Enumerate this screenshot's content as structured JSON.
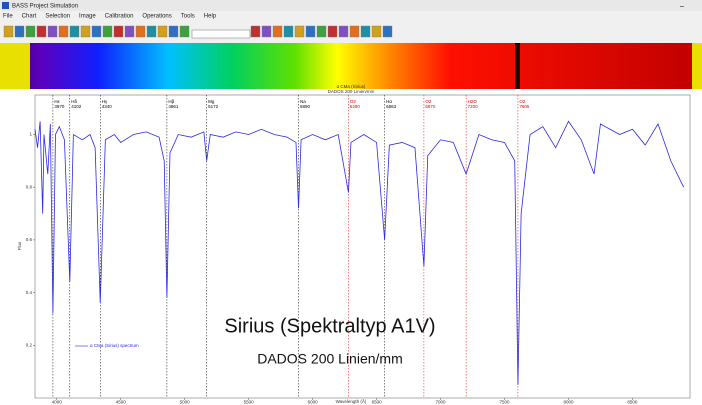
{
  "window": {
    "title": "BASS Project Simulation",
    "menu": [
      "File",
      "Chart",
      "Selection",
      "Image",
      "Calibration",
      "Operations",
      "Tools",
      "Help"
    ]
  },
  "chart": {
    "title": "α CMa (Sirius)",
    "subtitle": "DADOS 200 Linien/mm",
    "x_label": "Wavelength (Å)",
    "y_label": "Flux",
    "legend": "α CMa (Sirius) spectrum",
    "xlim": [
      3830,
      8950
    ],
    "ylim": [
      0,
      1.15
    ],
    "xticks": [
      4000,
      4500,
      5000,
      5500,
      6000,
      6500,
      7000,
      7500,
      8000,
      8500
    ],
    "yticks": [
      0.2,
      0.4,
      0.6,
      0.8,
      1.0
    ],
    "lines": [
      {
        "name": "Hε",
        "wavelength": 3970,
        "color": "#000000"
      },
      {
        "name": "Hδ",
        "wavelength": 4102,
        "color": "#000000"
      },
      {
        "name": "Hγ",
        "wavelength": 4340,
        "color": "#000000"
      },
      {
        "name": "Hβ",
        "wavelength": 4861,
        "color": "#000000"
      },
      {
        "name": "Mg",
        "wavelength": 5172,
        "color": "#000000"
      },
      {
        "name": "Na",
        "wavelength": 5890,
        "color": "#000000"
      },
      {
        "name": "O2",
        "wavelength": 6280,
        "color": "#e00000"
      },
      {
        "name": "Hα",
        "wavelength": 6563,
        "color": "#000000"
      },
      {
        "name": "O2",
        "wavelength": 6870,
        "color": "#e00000"
      },
      {
        "name": "H2O",
        "wavelength": 7200,
        "color": "#e00000"
      },
      {
        "name": "O2",
        "wavelength": 7605,
        "color": "#e00000"
      }
    ],
    "spectrum": {
      "color": "#2a2ae0",
      "x": [
        3830,
        3850,
        3870,
        3890,
        3900,
        3930,
        3950,
        3970,
        3990,
        4020,
        4060,
        4102,
        4130,
        4200,
        4260,
        4300,
        4340,
        4380,
        4450,
        4500,
        4600,
        4700,
        4800,
        4840,
        4861,
        4885,
        4950,
        5050,
        5150,
        5172,
        5200,
        5300,
        5400,
        5500,
        5600,
        5700,
        5800,
        5870,
        5890,
        5910,
        6000,
        6100,
        6200,
        6280,
        6300,
        6400,
        6500,
        6563,
        6600,
        6700,
        6800,
        6870,
        6900,
        7000,
        7100,
        7200,
        7300,
        7400,
        7500,
        7580,
        7605,
        7630,
        7700,
        7800,
        7900,
        8000,
        8100,
        8200,
        8250,
        8400,
        8500,
        8600,
        8700,
        8800,
        8900
      ],
      "y": [
        1.02,
        0.95,
        1.05,
        0.7,
        1.0,
        0.85,
        1.04,
        0.32,
        1.0,
        1.03,
        0.98,
        0.44,
        1.0,
        0.98,
        1.0,
        0.95,
        0.36,
        0.98,
        1.0,
        0.97,
        1.0,
        1.01,
        0.99,
        0.9,
        0.38,
        0.93,
        1.0,
        0.99,
        1.01,
        0.9,
        1.0,
        0.99,
        1.01,
        1.0,
        1.02,
        1.0,
        0.99,
        0.97,
        0.72,
        0.98,
        1.0,
        0.98,
        1.0,
        0.78,
        0.97,
        1.0,
        0.97,
        0.6,
        0.96,
        0.97,
        0.95,
        0.5,
        0.92,
        0.98,
        0.97,
        0.85,
        1.0,
        0.98,
        0.97,
        0.9,
        0.05,
        0.7,
        1.0,
        1.03,
        0.95,
        1.05,
        0.98,
        0.85,
        1.04,
        1.0,
        1.02,
        0.96,
        1.04,
        0.9,
        0.8
      ]
    }
  },
  "caption": {
    "title": "Sirius (Spektraltyp A1V)",
    "subtitle": "DADOS 200 Linien/mm"
  }
}
